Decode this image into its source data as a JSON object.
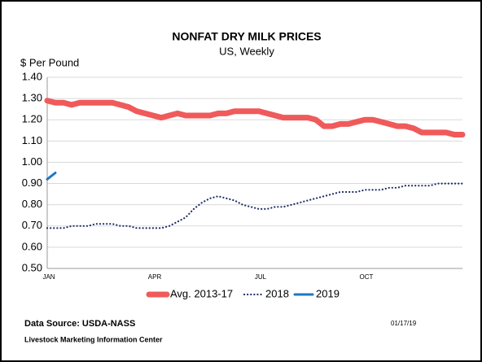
{
  "chart_data": {
    "type": "line",
    "title": "NONFAT DRY MILK PRICES",
    "subtitle": "US, Weekly",
    "y_label": "$ Per Pound",
    "source": "Data Source:  USDA-NASS",
    "credit": "Livestock Marketing Information Center",
    "date": "01/17/19",
    "categories": [
      "JAN",
      null,
      null,
      null,
      null,
      null,
      null,
      null,
      null,
      null,
      null,
      null,
      null,
      "APR",
      null,
      null,
      null,
      null,
      null,
      null,
      null,
      null,
      null,
      null,
      null,
      null,
      "JUL",
      null,
      null,
      null,
      null,
      null,
      null,
      null,
      null,
      null,
      null,
      null,
      null,
      "OCT",
      null,
      null,
      null,
      null,
      null,
      null,
      null,
      null,
      null,
      null,
      null,
      null
    ],
    "series": [
      {
        "name": "Avg. 2013-17",
        "color": "#f05a5a",
        "values": [
          1.29,
          1.28,
          1.28,
          1.27,
          1.28,
          1.28,
          1.28,
          1.28,
          1.28,
          1.27,
          1.26,
          1.24,
          1.23,
          1.22,
          1.21,
          1.22,
          1.23,
          1.22,
          1.22,
          1.22,
          1.22,
          1.23,
          1.23,
          1.24,
          1.24,
          1.24,
          1.24,
          1.23,
          1.22,
          1.21,
          1.21,
          1.21,
          1.21,
          1.2,
          1.17,
          1.17,
          1.18,
          1.18,
          1.19,
          1.2,
          1.2,
          1.19,
          1.18,
          1.17,
          1.17,
          1.16,
          1.14,
          1.14,
          1.14,
          1.14,
          1.13,
          1.13
        ]
      },
      {
        "name": "2018",
        "color": "#1f2f6b",
        "values": [
          0.69,
          0.69,
          0.69,
          0.7,
          0.7,
          0.7,
          0.71,
          0.71,
          0.71,
          0.7,
          0.7,
          0.69,
          0.69,
          0.69,
          0.69,
          0.7,
          0.72,
          0.74,
          0.78,
          0.81,
          0.83,
          0.84,
          0.83,
          0.82,
          0.8,
          0.79,
          0.78,
          0.78,
          0.79,
          0.79,
          0.8,
          0.81,
          0.82,
          0.83,
          0.84,
          0.85,
          0.86,
          0.86,
          0.86,
          0.87,
          0.87,
          0.87,
          0.88,
          0.88,
          0.89,
          0.89,
          0.89,
          0.89,
          0.9,
          0.9,
          0.9,
          0.9
        ]
      },
      {
        "name": "2019",
        "color": "#1f77c4",
        "values": [
          0.92,
          0.95,
          null,
          null,
          null,
          null,
          null,
          null,
          null,
          null,
          null,
          null,
          null,
          null,
          null,
          null,
          null,
          null,
          null,
          null,
          null,
          null,
          null,
          null,
          null,
          null,
          null,
          null,
          null,
          null,
          null,
          null,
          null,
          null,
          null,
          null,
          null,
          null,
          null,
          null,
          null,
          null,
          null,
          null,
          null,
          null,
          null,
          null,
          null,
          null,
          null,
          null
        ]
      }
    ],
    "ylim": [
      0.5,
      1.4
    ],
    "yticks": [
      {
        "value": 0.5,
        "label": "0.50"
      },
      {
        "value": 0.6,
        "label": "0.60"
      },
      {
        "value": 0.7,
        "label": "0.70"
      },
      {
        "value": 0.8,
        "label": "0.80"
      },
      {
        "value": 0.9,
        "label": "0.90"
      },
      {
        "value": 1.0,
        "label": "1.00"
      },
      {
        "value": 1.1,
        "label": "1.10"
      },
      {
        "value": 1.2,
        "label": "1.20"
      },
      {
        "value": 1.3,
        "label": "1.30"
      },
      {
        "value": 1.4,
        "label": "1.40"
      }
    ],
    "grid": true
  }
}
